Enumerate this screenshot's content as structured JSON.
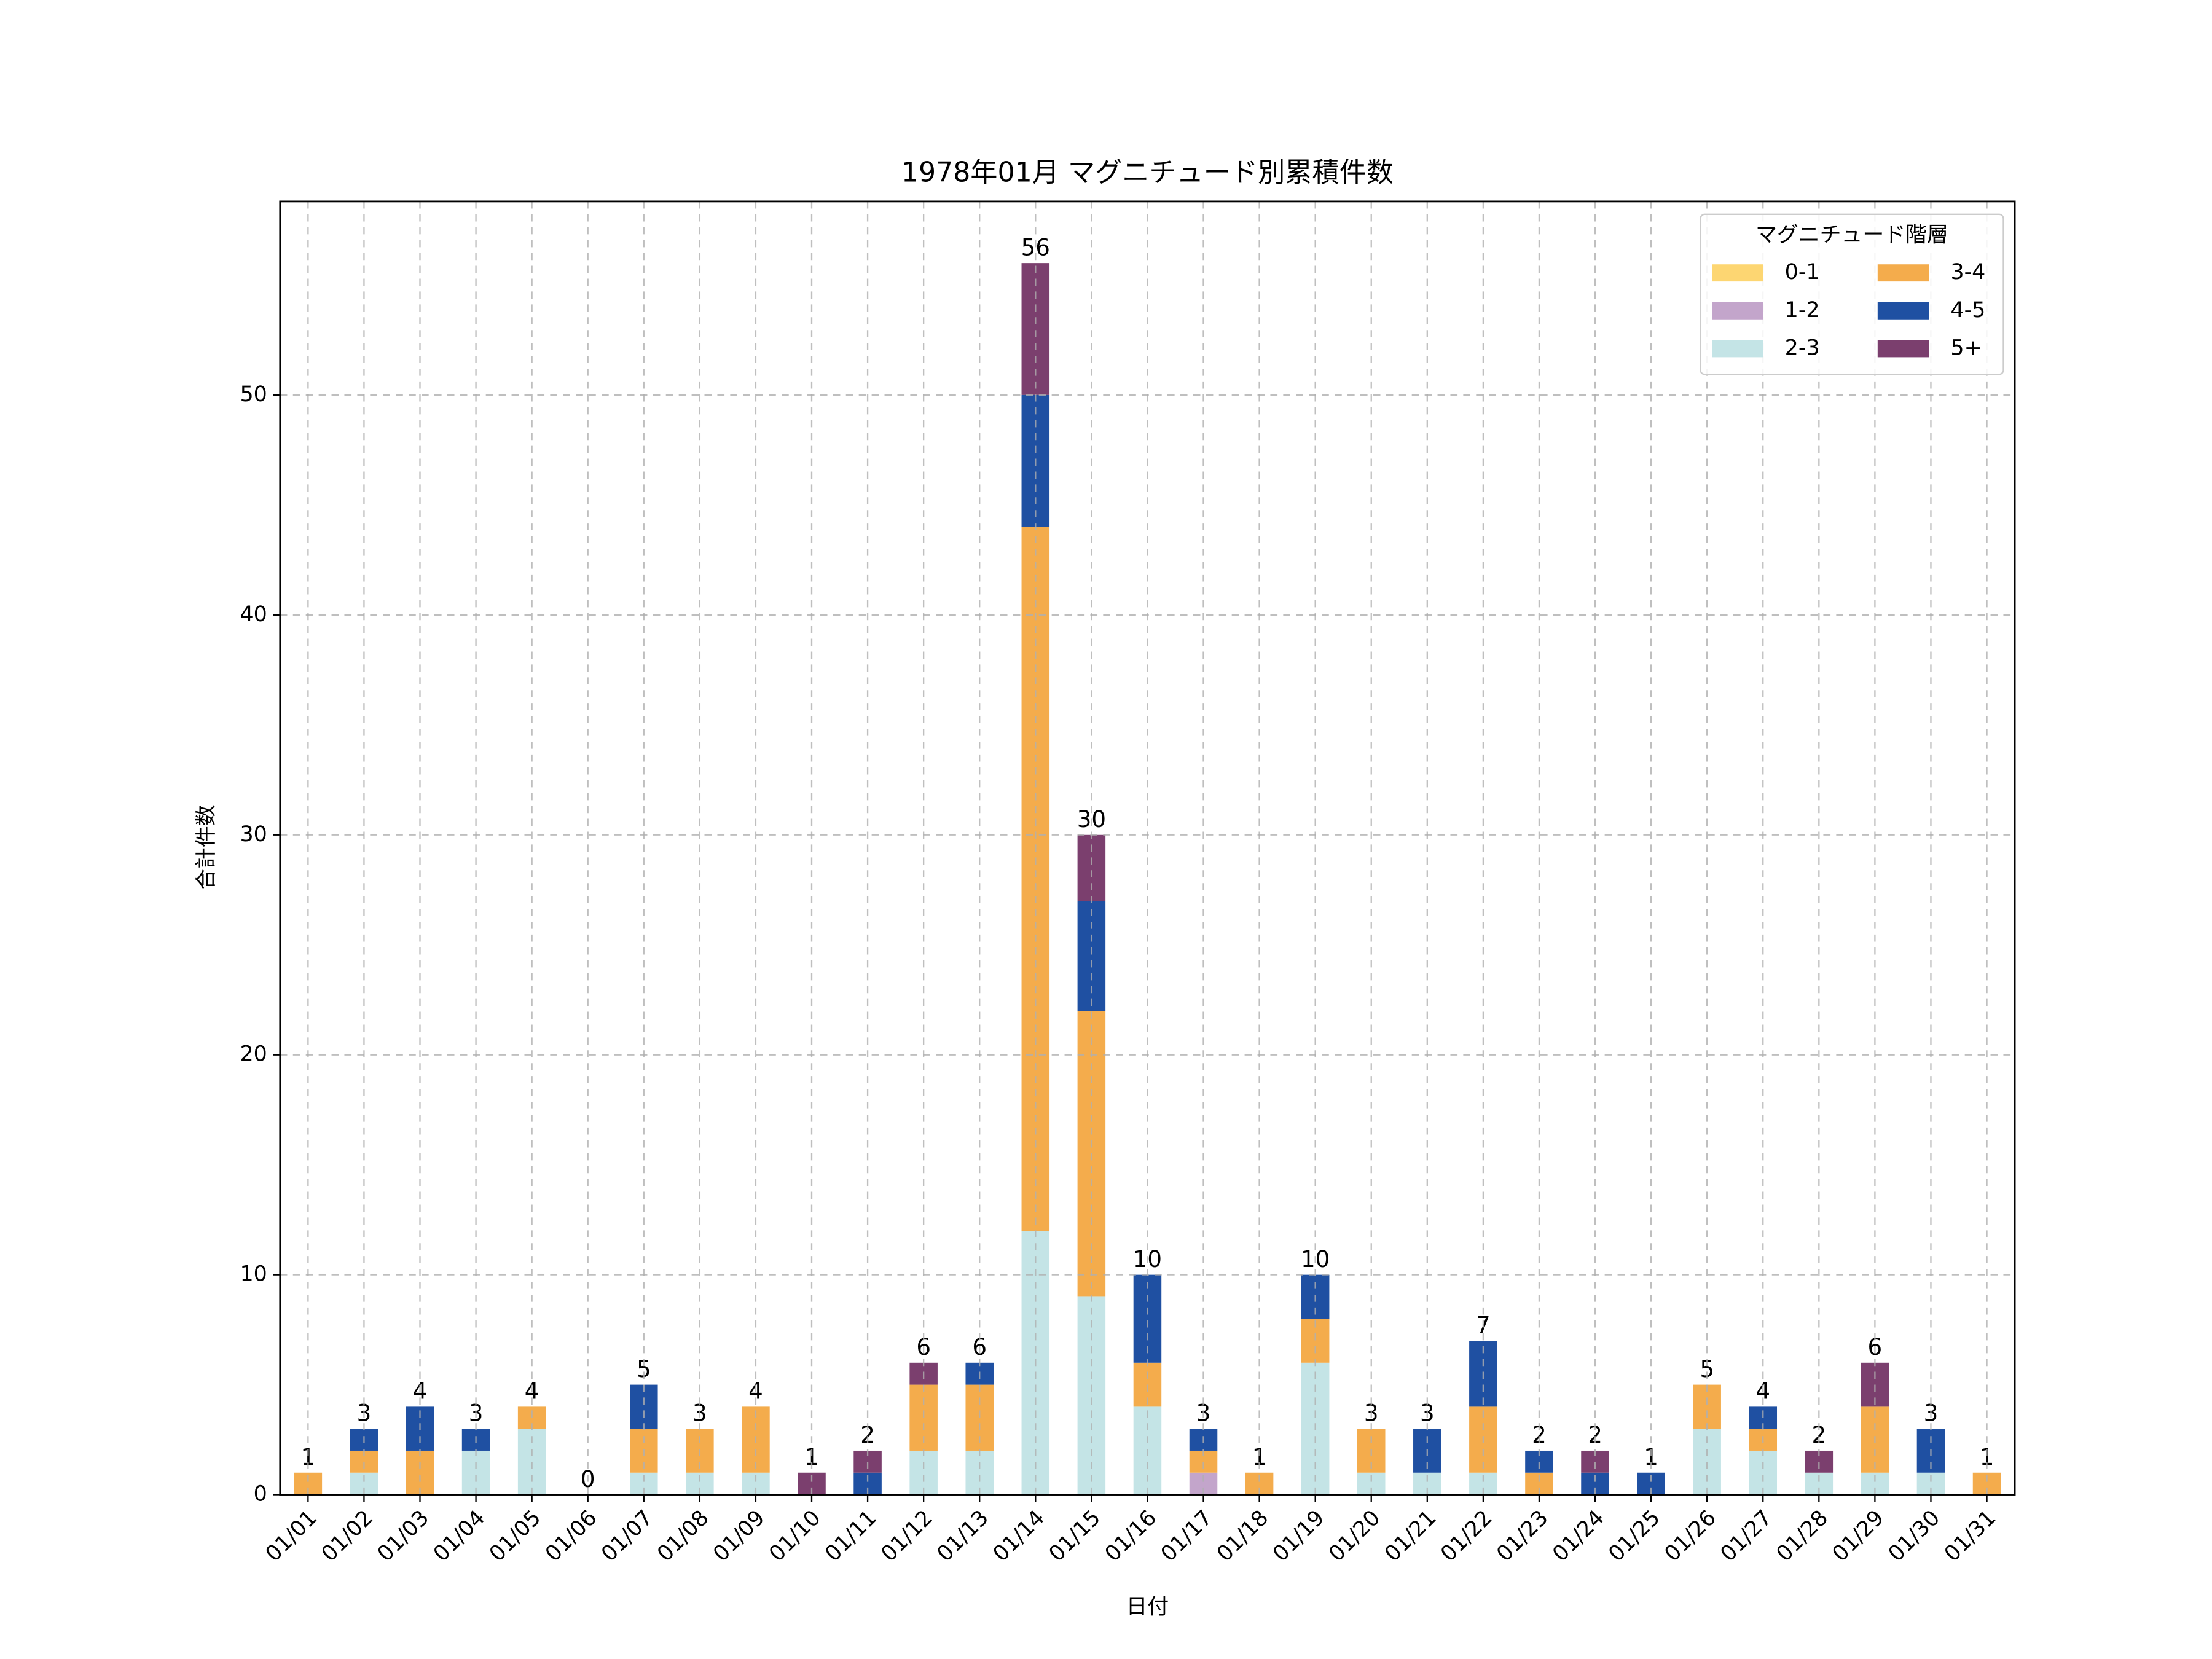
{
  "chart_data": {
    "type": "stacked_bar",
    "title": "1978年01月 マグニチュード別累積件数",
    "x_label": "日付",
    "y_label": "合計件数",
    "categories": [
      "01/01",
      "01/02",
      "01/03",
      "01/04",
      "01/05",
      "01/06",
      "01/07",
      "01/08",
      "01/09",
      "01/10",
      "01/11",
      "01/12",
      "01/13",
      "01/14",
      "01/15",
      "01/16",
      "01/17",
      "01/18",
      "01/19",
      "01/20",
      "01/21",
      "01/22",
      "01/23",
      "01/24",
      "01/25",
      "01/26",
      "01/27",
      "01/28",
      "01/29",
      "01/30",
      "01/31"
    ],
    "series": [
      {
        "name": "0-1",
        "color": "#fdd672",
        "values": [
          0,
          0,
          0,
          0,
          0,
          0,
          0,
          0,
          0,
          0,
          0,
          0,
          0,
          0,
          0,
          0,
          0,
          0,
          0,
          0,
          0,
          0,
          0,
          0,
          0,
          0,
          0,
          0,
          0,
          0,
          0
        ]
      },
      {
        "name": "1-2",
        "color": "#c3a5cb",
        "values": [
          0,
          0,
          0,
          0,
          0,
          0,
          0,
          0,
          0,
          0,
          0,
          0,
          0,
          0,
          0,
          0,
          1,
          0,
          0,
          0,
          0,
          0,
          0,
          0,
          0,
          0,
          0,
          0,
          0,
          0,
          0
        ]
      },
      {
        "name": "2-3",
        "color": "#c4e4e6",
        "values": [
          0,
          1,
          0,
          2,
          3,
          0,
          1,
          1,
          1,
          0,
          0,
          2,
          2,
          12,
          9,
          4,
          0,
          0,
          6,
          1,
          1,
          1,
          0,
          0,
          0,
          3,
          2,
          1,
          1,
          1,
          0
        ]
      },
      {
        "name": "3-4",
        "color": "#f4ac4c",
        "values": [
          1,
          1,
          2,
          0,
          1,
          0,
          2,
          2,
          3,
          0,
          0,
          3,
          3,
          32,
          13,
          2,
          1,
          1,
          2,
          2,
          0,
          3,
          1,
          0,
          0,
          2,
          1,
          0,
          3,
          0,
          1
        ]
      },
      {
        "name": "4-5",
        "color": "#1f50a2",
        "values": [
          0,
          1,
          2,
          1,
          0,
          0,
          2,
          0,
          0,
          0,
          1,
          0,
          1,
          6,
          5,
          4,
          1,
          0,
          2,
          0,
          2,
          3,
          1,
          1,
          1,
          0,
          1,
          0,
          0,
          2,
          0
        ]
      },
      {
        "name": "5+",
        "color": "#7b3f6e",
        "values": [
          0,
          0,
          0,
          0,
          0,
          0,
          0,
          0,
          0,
          1,
          1,
          1,
          0,
          6,
          3,
          0,
          0,
          0,
          0,
          0,
          0,
          0,
          0,
          1,
          0,
          0,
          0,
          1,
          2,
          0,
          0
        ]
      }
    ],
    "totals": [
      1,
      3,
      4,
      3,
      4,
      0,
      5,
      3,
      4,
      1,
      2,
      6,
      6,
      56,
      30,
      10,
      3,
      1,
      10,
      3,
      3,
      7,
      2,
      2,
      1,
      5,
      4,
      2,
      6,
      3,
      1
    ],
    "ylim": [
      0,
      58.8
    ],
    "yticks": [
      0,
      10,
      20,
      30,
      40,
      50
    ],
    "grid": true,
    "legend_title": "マグニチュード階層",
    "legend_position": "upper-right",
    "legend_columns": 2
  }
}
